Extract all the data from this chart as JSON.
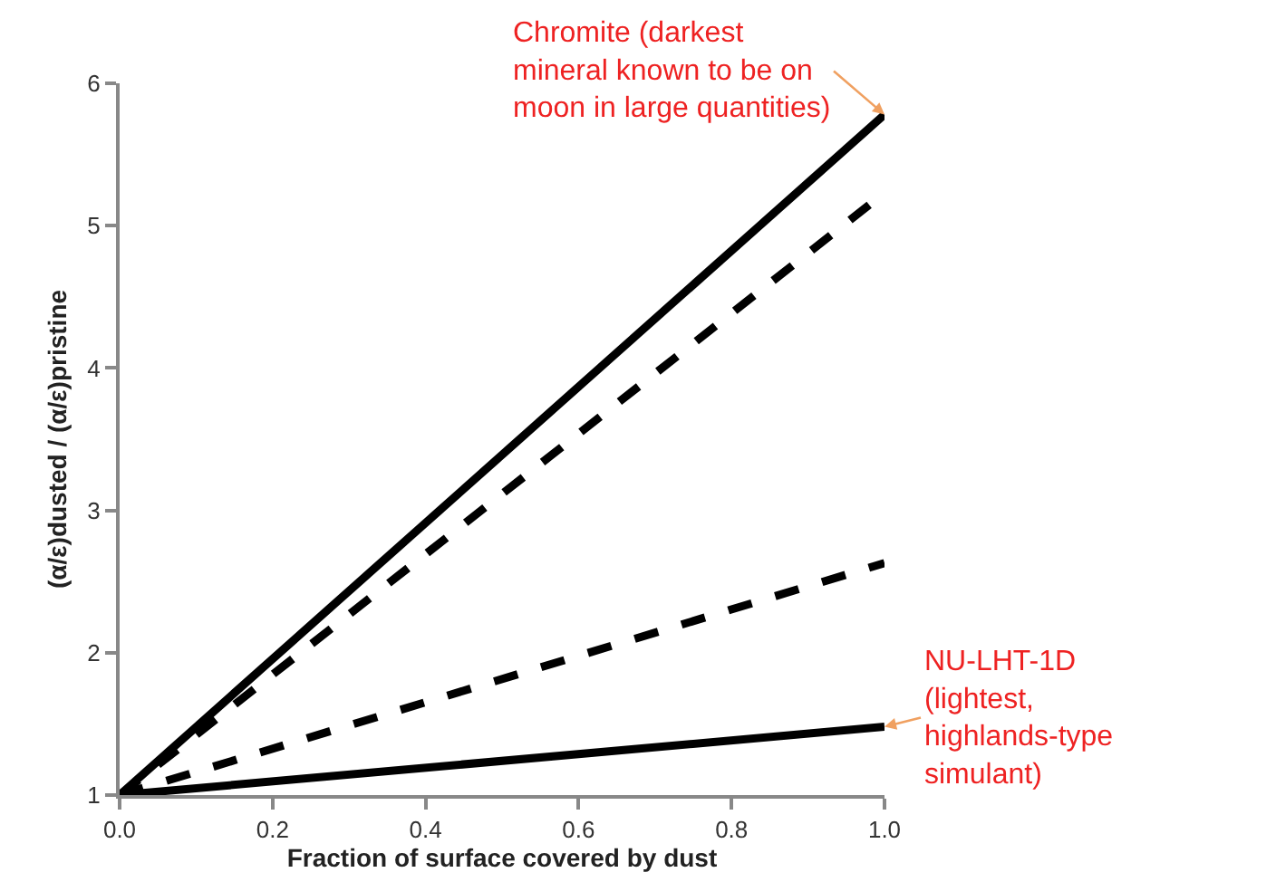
{
  "chart_data": {
    "type": "line",
    "xlabel": "Fraction of surface covered by dust",
    "ylabel": "(α/ε)dusted / (α/ε)pristine",
    "x": [
      0,
      1
    ],
    "series": [
      {
        "color": "#000000",
        "line_style": "solid",
        "values": [
          1,
          5.78
        ]
      },
      {
        "color": "#000000",
        "line_style": "dashed",
        "values": [
          1,
          5.23
        ]
      },
      {
        "color": "#000000",
        "line_style": "dashed",
        "values": [
          1,
          2.63
        ]
      },
      {
        "color": "#000000",
        "line_style": "solid",
        "values": [
          1,
          1.48
        ]
      }
    ],
    "xlim": [
      0,
      1
    ],
    "xticks": [
      {
        "value": 0,
        "label": "0.0"
      },
      0.2,
      0.4,
      0.6,
      0.8,
      {
        "value": 1,
        "label": "1.0"
      }
    ],
    "ylim": [
      1,
      6
    ],
    "yticks": [
      1,
      2,
      3,
      4,
      5,
      6
    ],
    "grid": false,
    "marker": "none",
    "annotations": [
      {
        "text": "Chromite (darkest\nmineral known to be on\nmoon in large quantities)",
        "x": 1,
        "y": 5.78
      },
      {
        "text": "NU-LHT-1D\n(lightest,\nhighlands-type\nsimulant)",
        "x": 1,
        "y": 1.48
      }
    ]
  }
}
